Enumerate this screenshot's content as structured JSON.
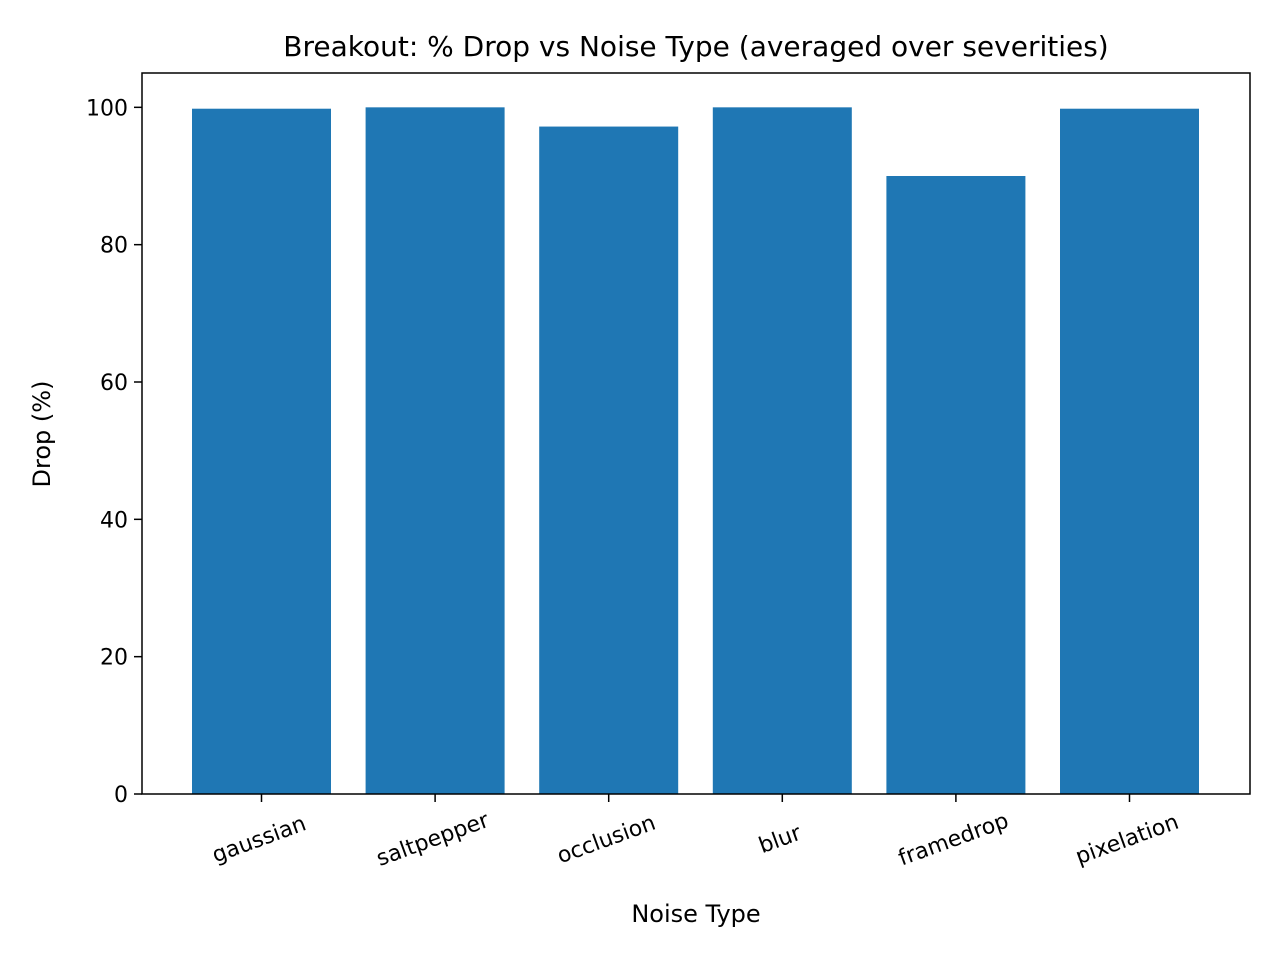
{
  "chart_data": {
    "type": "bar",
    "title": "Breakout: % Drop vs Noise Type (averaged over severities)",
    "xlabel": "Noise Type",
    "ylabel": "Drop (%)",
    "categories": [
      "gaussian",
      "saltpepper",
      "occlusion",
      "blur",
      "framedrop",
      "pixelation"
    ],
    "values": [
      99.8,
      100.0,
      97.2,
      100.0,
      90.0,
      99.8
    ],
    "ylim": [
      0,
      105
    ],
    "yticks": [
      0,
      20,
      40,
      60,
      80,
      100
    ],
    "bar_color": "#1f77b4",
    "grid": false,
    "legend": "none"
  }
}
